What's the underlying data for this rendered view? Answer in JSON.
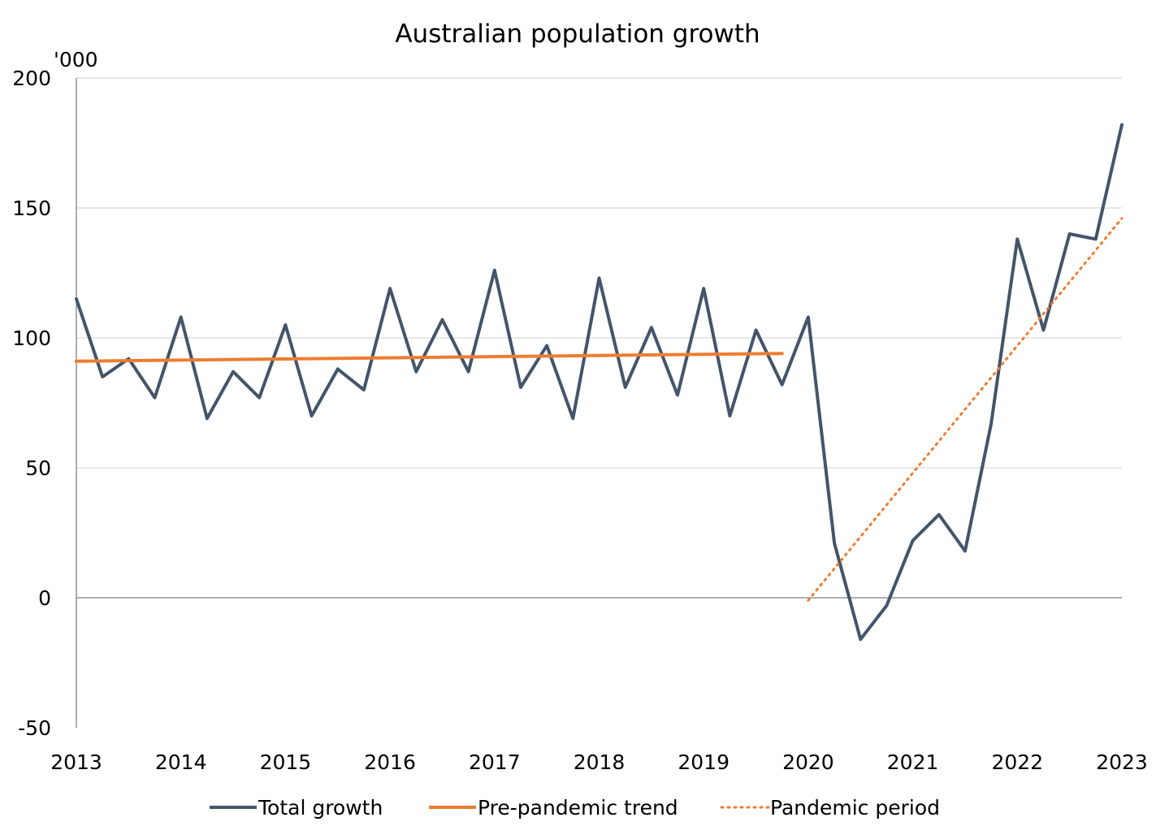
{
  "chart_data": {
    "type": "line",
    "title": "Australian population growth",
    "ylabel": "'000",
    "xlabel": "",
    "ylim": [
      -50,
      200
    ],
    "xlim": [
      2013,
      2023
    ],
    "y_ticks": [
      -50,
      0,
      50,
      100,
      150,
      200
    ],
    "x_ticks": [
      2013,
      2014,
      2015,
      2016,
      2017,
      2018,
      2019,
      2020,
      2021,
      2022,
      2023
    ],
    "grid": "horizontal",
    "legend_position": "bottom",
    "series": [
      {
        "name": "Total growth",
        "color": "#44546a",
        "style": "solid",
        "x": [
          2013,
          2013.25,
          2013.5,
          2013.75,
          2014,
          2014.25,
          2014.5,
          2014.75,
          2015,
          2015.25,
          2015.5,
          2015.75,
          2016,
          2016.25,
          2016.5,
          2016.75,
          2017,
          2017.25,
          2017.5,
          2017.75,
          2018,
          2018.25,
          2018.5,
          2018.75,
          2019,
          2019.25,
          2019.5,
          2019.75,
          2020,
          2020.25,
          2020.5,
          2020.75,
          2021,
          2021.25,
          2021.5,
          2021.75,
          2022,
          2022.25,
          2022.5,
          2022.75,
          2023
        ],
        "values": [
          115,
          85,
          92,
          77,
          108,
          69,
          87,
          77,
          105,
          70,
          88,
          80,
          119,
          87,
          107,
          87,
          126,
          81,
          97,
          69,
          123,
          81,
          104,
          78,
          119,
          70,
          103,
          82,
          108,
          21,
          -16,
          -3,
          22,
          32,
          18,
          67,
          138,
          103,
          140,
          138,
          182
        ]
      },
      {
        "name": "Pre-pandemic trend",
        "color": "#ed7d31",
        "style": "solid",
        "x": [
          2013,
          2019.75
        ],
        "values": [
          91,
          94
        ]
      },
      {
        "name": "Pandemic period",
        "color": "#ed7d31",
        "style": "dotted",
        "x": [
          2020,
          2023
        ],
        "values": [
          -1,
          146
        ]
      }
    ]
  }
}
